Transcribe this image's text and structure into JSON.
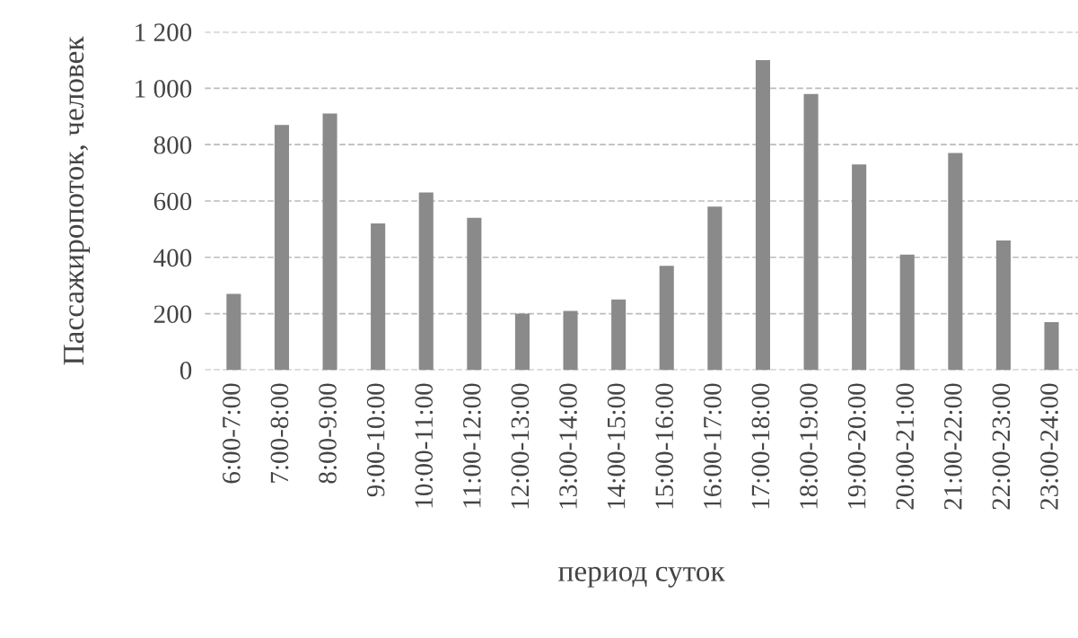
{
  "chart_data": {
    "type": "bar",
    "xlabel": "период суток",
    "ylabel": "Пассажиропоток, человек",
    "categories": [
      "6:00-7:00",
      "7:00-8:00",
      "8:00-9:00",
      "9:00-10:00",
      "10:00-11:00",
      "11:00-12:00",
      "12:00-13:00",
      "13:00-14:00",
      "14:00-15:00",
      "15:00-16:00",
      "16:00-17:00",
      "17:00-18:00",
      "18:00-19:00",
      "19:00-20:00",
      "20:00-21:00",
      "21:00-22:00",
      "22:00-23:00",
      "23:00-24:00"
    ],
    "values": [
      270,
      870,
      910,
      520,
      630,
      540,
      200,
      210,
      250,
      370,
      580,
      1100,
      980,
      730,
      410,
      770,
      460,
      170
    ],
    "color": "#8a8a8a",
    "ylim": [
      0,
      1200
    ],
    "yticks": [
      0,
      200,
      400,
      600,
      800,
      {
        "value": 1000,
        "label": "1 000"
      },
      {
        "value": 1200,
        "label": "1 200"
      }
    ],
    "grid": "y"
  }
}
